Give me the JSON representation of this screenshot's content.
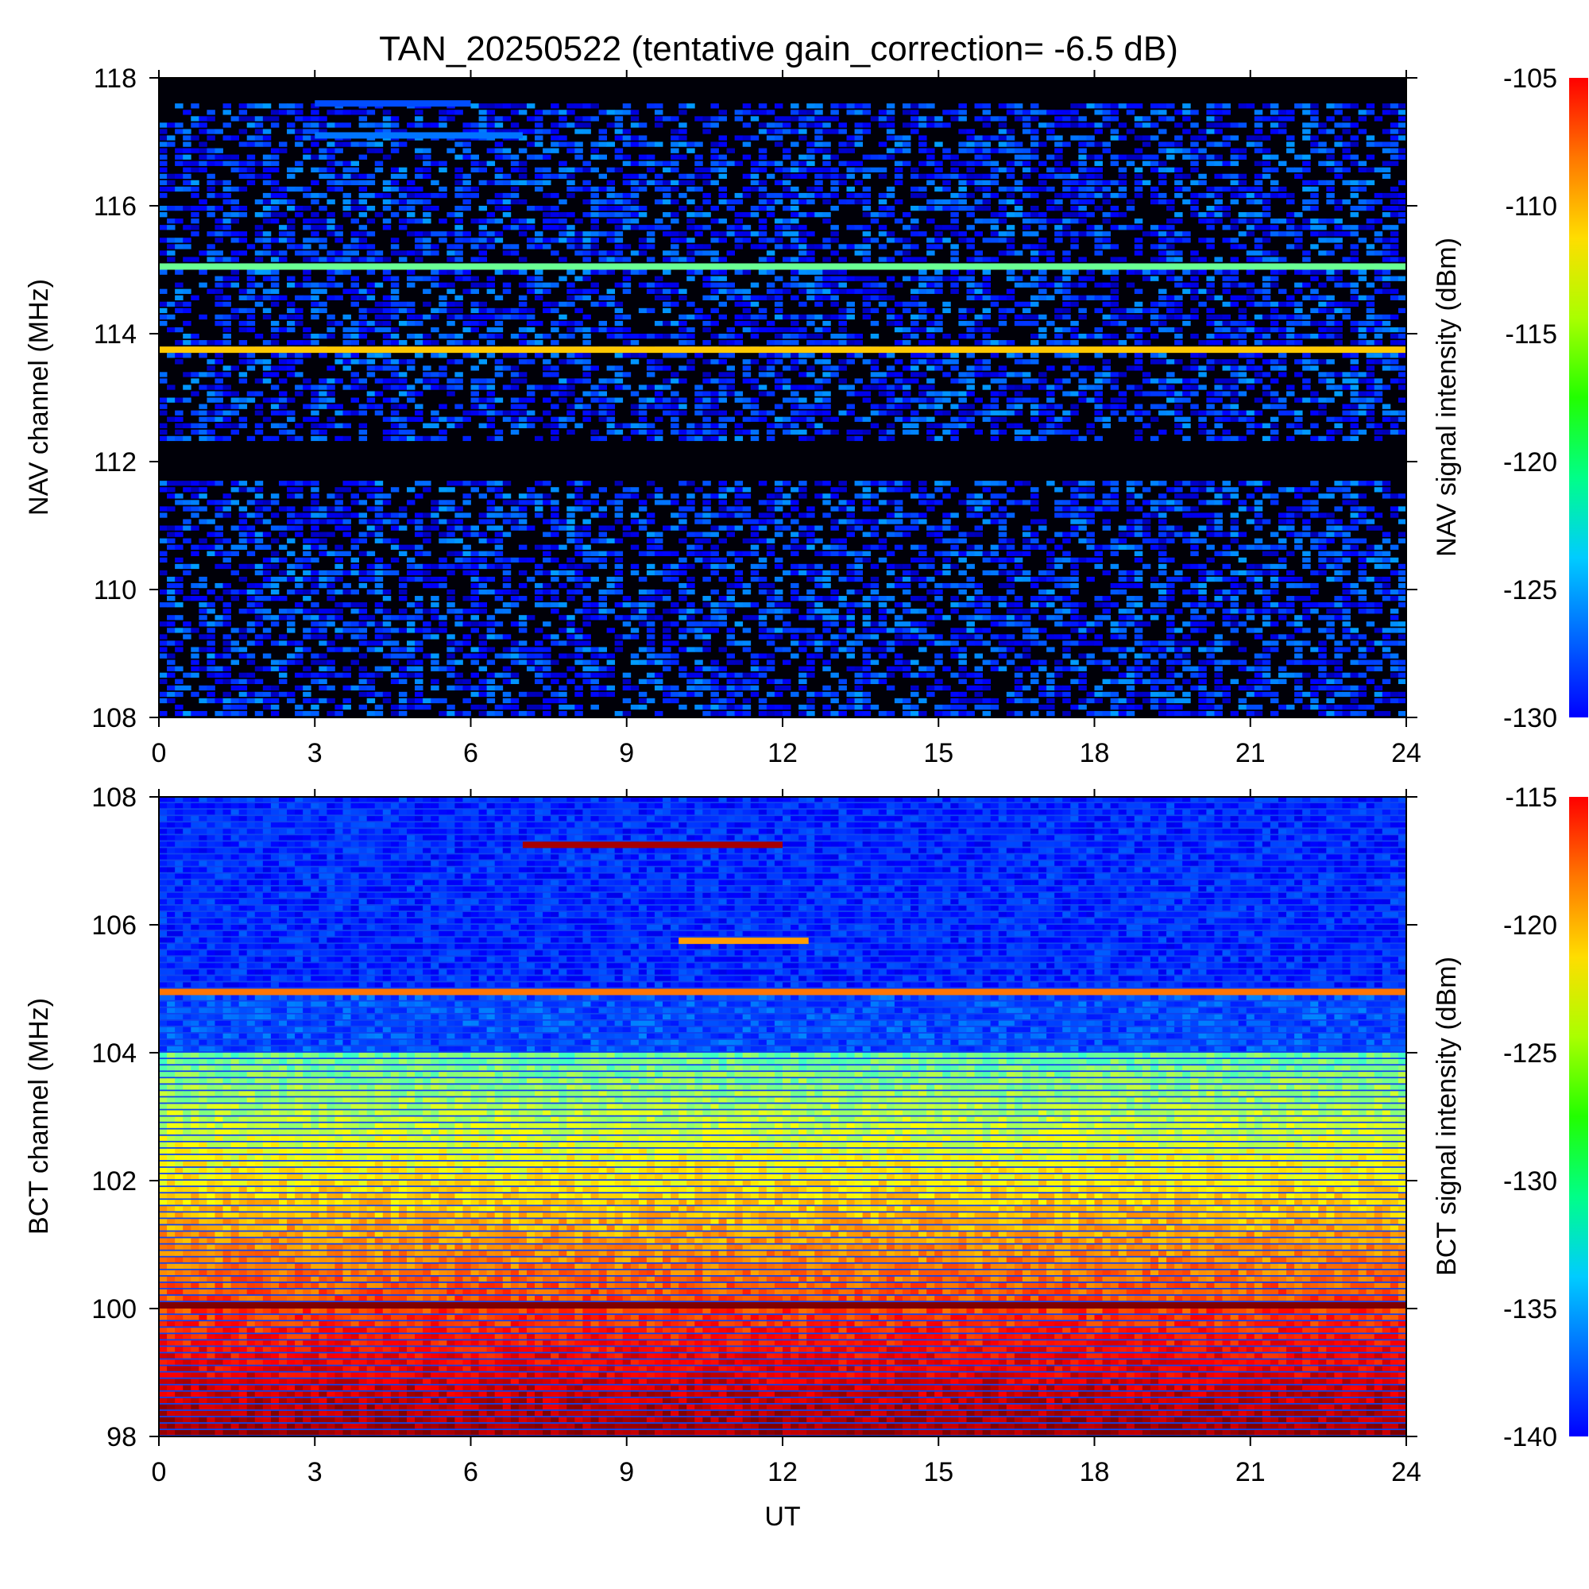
{
  "title": "TAN_20250522 (tentative gain_correction= -6.5 dB)",
  "chart_data": [
    {
      "type": "heatmap",
      "name": "nav",
      "ylabel": "NAV channel (MHz)",
      "xlabel": "",
      "colorbar_label": "NAV signal intensity (dBm)",
      "xlim": [
        0,
        24
      ],
      "ylim": [
        108,
        118
      ],
      "clim": [
        -130,
        -105
      ],
      "xticks": [
        0,
        3,
        6,
        9,
        12,
        15,
        18,
        21,
        24
      ],
      "yticks": [
        108,
        110,
        112,
        114,
        116,
        118
      ],
      "cticks": [
        -130,
        -125,
        -120,
        -115,
        -110,
        -105
      ],
      "colormap": "jet",
      "features": [
        {
          "freq": 113.75,
          "level_dBm": -113,
          "ut_range": [
            0,
            24
          ]
        },
        {
          "freq": 115.05,
          "level_dBm": -118,
          "ut_range": [
            0,
            24
          ]
        },
        {
          "freq": 117.1,
          "level_dBm": -124,
          "ut_range": [
            3,
            7
          ]
        },
        {
          "freq": 117.6,
          "level_dBm": -125,
          "ut_range": [
            3,
            6
          ]
        }
      ]
    },
    {
      "type": "heatmap",
      "name": "bct",
      "ylabel": "BCT channel (MHz)",
      "xlabel": "UT",
      "colorbar_label": "BCT signal intensity (dBm)",
      "xlim": [
        0,
        24
      ],
      "ylim": [
        98,
        108
      ],
      "clim": [
        -140,
        -115
      ],
      "xticks": [
        0,
        3,
        6,
        9,
        12,
        15,
        18,
        21,
        24
      ],
      "yticks": [
        98,
        100,
        102,
        104,
        106,
        108
      ],
      "cticks": [
        -140,
        -135,
        -130,
        -125,
        -120,
        -115
      ],
      "colormap": "jet",
      "features": [
        {
          "freq": 100.05,
          "level_dBm": -115,
          "ut_range": [
            0,
            24
          ]
        },
        {
          "freq": 104.95,
          "level_dBm": -121,
          "ut_range": [
            0,
            24
          ]
        },
        {
          "freq": 107.25,
          "level_dBm": -116,
          "ut_range": [
            7,
            12
          ]
        },
        {
          "freq": 105.75,
          "level_dBm": -122,
          "ut_range": [
            10,
            12.5
          ]
        }
      ]
    }
  ]
}
